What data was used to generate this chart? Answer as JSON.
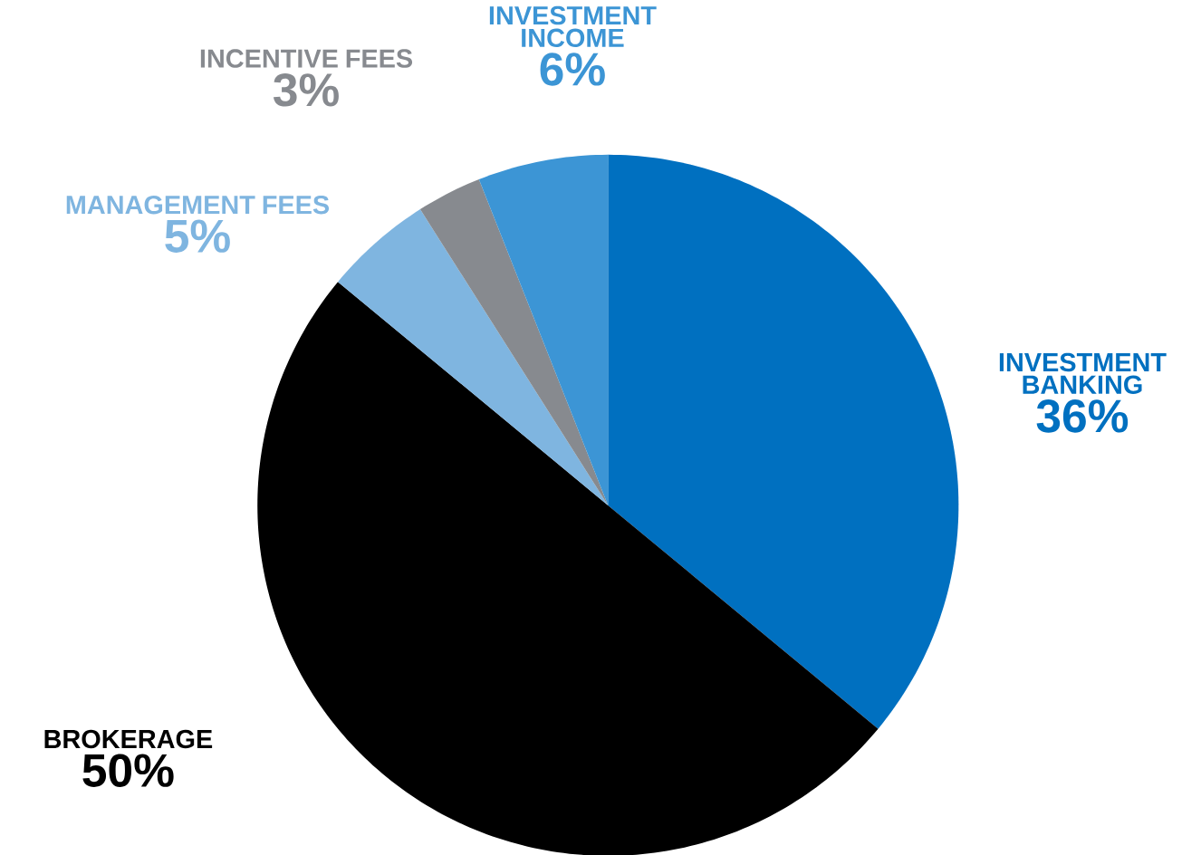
{
  "chart_data": {
    "type": "pie",
    "categories": [
      "INVESTMENT BANKING",
      "BROKERAGE",
      "MANAGEMENT FEES",
      "INCENTIVE FEES",
      "INVESTMENT INCOME"
    ],
    "values": [
      36,
      50,
      5,
      3,
      6
    ],
    "value_labels": [
      "36%",
      "50%",
      "5%",
      "3%",
      "6%"
    ],
    "colors": [
      "#0070c0",
      "#000000",
      "#7fb5e0",
      "#878a8f",
      "#3c95d5"
    ]
  }
}
